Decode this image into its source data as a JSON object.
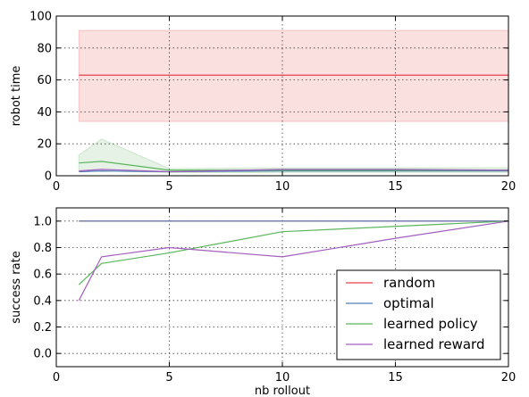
{
  "chart_data": [
    {
      "type": "line",
      "xlabel": "",
      "ylabel": "robot time",
      "xlim": [
        0,
        20
      ],
      "ylim": [
        0,
        100
      ],
      "xticks": [
        0,
        5,
        10,
        15,
        20
      ],
      "yticks": [
        0,
        20,
        40,
        60,
        80,
        100
      ],
      "xtick_labels": [
        "0",
        "5",
        "10",
        "15",
        "20"
      ],
      "ytick_labels": [
        "0",
        "20",
        "40",
        "60",
        "80",
        "100"
      ],
      "grid": true,
      "series": [
        {
          "name": "random",
          "color": "#e8414b",
          "x": [
            1,
            20
          ],
          "y": [
            63,
            63
          ],
          "band_low": [
            34,
            34
          ],
          "band_high": [
            91,
            91
          ],
          "band_color": "#f7c6c6"
        },
        {
          "name": "optimal",
          "color": "#4d7fb8",
          "x": [
            1,
            2,
            5,
            10,
            15,
            20
          ],
          "y": [
            2.5,
            3,
            2.5,
            3,
            3,
            3
          ]
        },
        {
          "name": "learned policy",
          "color": "#5ab55a",
          "x": [
            1,
            2,
            5,
            10,
            15,
            20
          ],
          "y": [
            8,
            9,
            3.5,
            3.5,
            3.5,
            3.5
          ],
          "band_low": [
            3,
            3,
            2,
            2,
            2,
            2
          ],
          "band_high": [
            13,
            23,
            4.5,
            5,
            5,
            5
          ],
          "band_color": "#cfe8cf"
        },
        {
          "name": "learned reward",
          "color": "#a25dbe",
          "x": [
            1,
            2,
            5,
            10,
            15,
            20
          ],
          "y": [
            3,
            4,
            2.5,
            4,
            4,
            3.5
          ]
        }
      ]
    },
    {
      "type": "line",
      "xlabel": "nb rollout",
      "ylabel": "success rate",
      "xlim": [
        0,
        20
      ],
      "ylim": [
        -0.1,
        1.1
      ],
      "xticks": [
        0,
        5,
        10,
        15,
        20
      ],
      "yticks": [
        0.0,
        0.2,
        0.4,
        0.6,
        0.8,
        1.0
      ],
      "xtick_labels": [
        "0",
        "5",
        "10",
        "15",
        "20"
      ],
      "ytick_labels": [
        "0.0",
        "0.2",
        "0.4",
        "0.6",
        "0.8",
        "1.0"
      ],
      "grid": true,
      "legend": "bottom-right",
      "series": [
        {
          "name": "random",
          "color": "#e8414b",
          "x": [
            1,
            20
          ],
          "y": [
            1.0,
            1.0
          ]
        },
        {
          "name": "optimal",
          "color": "#4d7fb8",
          "x": [
            1,
            20
          ],
          "y": [
            1.0,
            1.0
          ]
        },
        {
          "name": "learned policy",
          "color": "#5ab55a",
          "x": [
            1,
            2,
            5,
            10,
            15,
            20
          ],
          "y": [
            0.52,
            0.68,
            0.76,
            0.92,
            0.96,
            1.0
          ]
        },
        {
          "name": "learned reward",
          "color": "#a25dbe",
          "x": [
            1,
            2,
            5,
            10,
            15,
            20
          ],
          "y": [
            0.4,
            0.73,
            0.8,
            0.73,
            0.87,
            1.0
          ]
        }
      ]
    }
  ]
}
